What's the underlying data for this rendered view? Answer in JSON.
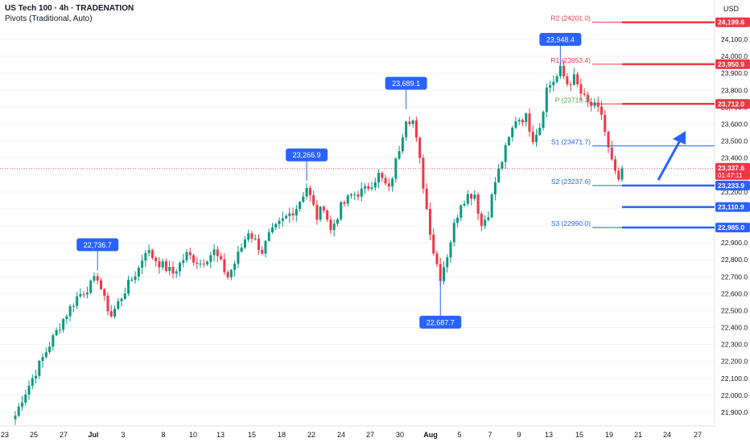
{
  "header": {
    "symbol_line": "US Tech 100 · 4h · TRADENATION",
    "indicator_line": "Pivots (Traditional, Auto)"
  },
  "colors": {
    "up": "#089981",
    "down": "#f23645",
    "blue": "#2962ff",
    "pivot_green": "#4caf50",
    "resistance_red": "#f23645",
    "axis_text": "#131722",
    "grid": "#f0f3fa"
  },
  "chart_data": {
    "type": "candlestick",
    "currency": "USD",
    "ylim": [
      21850,
      24280
    ],
    "y_ticks": [
      21900,
      22000,
      22100,
      22200,
      22300,
      22400,
      22500,
      22600,
      22700,
      22800,
      22900,
      23000,
      23100,
      23200,
      23300,
      23400,
      23500,
      23600,
      23700,
      23800,
      23900,
      24000,
      24100
    ],
    "y_tick_labels": [
      "21,900.0",
      "22,000.0",
      "22,100.0",
      "22,200.0",
      "22,300.0",
      "22,400.0",
      "22,500.0",
      "22,600.0",
      "22,700.0",
      "22,800.0",
      "22,900.0",
      "23,000.0",
      "23,100.0",
      "23,200.0",
      "23,300.0",
      "23,400.0",
      "23,500.0",
      "23,600.0",
      "23,700.0",
      "23,800.0",
      "23,900.0",
      "24,000.0",
      "24,100.0"
    ],
    "x_tick_labels": [
      "23",
      "25",
      "27",
      "Jul",
      "3",
      "8",
      "10",
      "13",
      "15",
      "18",
      "22",
      "24",
      "27",
      "30",
      "Aug",
      "5",
      "7",
      "9",
      "13",
      "15",
      "19",
      "21",
      "24",
      "27"
    ],
    "x_bold": [
      "Jul",
      "Aug"
    ],
    "anchors": [
      {
        "x": 0,
        "y": 21880
      },
      {
        "x": 2,
        "y": 21980
      },
      {
        "x": 5,
        "y": 22100
      },
      {
        "x": 10,
        "y": 22300
      },
      {
        "x": 14,
        "y": 22450
      },
      {
        "x": 18,
        "y": 22580
      },
      {
        "x": 22,
        "y": 22650
      },
      {
        "x": 24,
        "y": 22700
      },
      {
        "x": 26,
        "y": 22560
      },
      {
        "x": 28,
        "y": 22470
      },
      {
        "x": 32,
        "y": 22620
      },
      {
        "x": 36,
        "y": 22750
      },
      {
        "x": 38,
        "y": 22860
      },
      {
        "x": 42,
        "y": 22780
      },
      {
        "x": 46,
        "y": 22720
      },
      {
        "x": 50,
        "y": 22830
      },
      {
        "x": 54,
        "y": 22780
      },
      {
        "x": 58,
        "y": 22850
      },
      {
        "x": 62,
        "y": 22700
      },
      {
        "x": 64,
        "y": 22780
      },
      {
        "x": 68,
        "y": 22970
      },
      {
        "x": 72,
        "y": 22850
      },
      {
        "x": 74,
        "y": 22940
      },
      {
        "x": 78,
        "y": 23030
      },
      {
        "x": 82,
        "y": 23110
      },
      {
        "x": 85,
        "y": 23230
      },
      {
        "x": 88,
        "y": 23050
      },
      {
        "x": 90,
        "y": 23120
      },
      {
        "x": 92,
        "y": 22970
      },
      {
        "x": 95,
        "y": 23110
      },
      {
        "x": 98,
        "y": 23180
      },
      {
        "x": 102,
        "y": 23210
      },
      {
        "x": 106,
        "y": 23300
      },
      {
        "x": 109,
        "y": 23210
      },
      {
        "x": 112,
        "y": 23460
      },
      {
        "x": 114,
        "y": 23640
      },
      {
        "x": 116,
        "y": 23620
      },
      {
        "x": 118,
        "y": 23380
      },
      {
        "x": 120,
        "y": 23100
      },
      {
        "x": 122,
        "y": 22850
      },
      {
        "x": 124,
        "y": 22700
      },
      {
        "x": 126,
        "y": 22830
      },
      {
        "x": 128,
        "y": 23000
      },
      {
        "x": 130,
        "y": 23140
      },
      {
        "x": 132,
        "y": 23180
      },
      {
        "x": 134,
        "y": 23190
      },
      {
        "x": 136,
        "y": 23000
      },
      {
        "x": 138,
        "y": 23080
      },
      {
        "x": 140,
        "y": 23260
      },
      {
        "x": 143,
        "y": 23450
      },
      {
        "x": 146,
        "y": 23630
      },
      {
        "x": 149,
        "y": 23640
      },
      {
        "x": 151,
        "y": 23520
      },
      {
        "x": 153,
        "y": 23590
      },
      {
        "x": 155,
        "y": 23810
      },
      {
        "x": 158,
        "y": 23880
      },
      {
        "x": 159,
        "y": 23920
      },
      {
        "x": 161,
        "y": 23840
      },
      {
        "x": 163,
        "y": 23870
      },
      {
        "x": 165,
        "y": 23780
      },
      {
        "x": 167,
        "y": 23720
      },
      {
        "x": 169,
        "y": 23700
      },
      {
        "x": 171,
        "y": 23660
      },
      {
        "x": 173,
        "y": 23450
      },
      {
        "x": 175,
        "y": 23300
      },
      {
        "x": 176,
        "y": 23270
      },
      {
        "x": 177,
        "y": 23337
      }
    ],
    "pivots": [
      {
        "name": "R2",
        "label": "R2 (24201.0)",
        "value": 24201.0,
        "price_label": "24,199.6",
        "color": "#f23645"
      },
      {
        "name": "R1",
        "label": "R1 (23953.4)",
        "value": 23953.4,
        "price_label": "23,950.9",
        "color": "#f23645"
      },
      {
        "name": "P",
        "label": "P (23719.3)",
        "value": 23719.3,
        "price_label": "23,712.0",
        "color": "#f23645"
      },
      {
        "name": "S1",
        "label": "S1 (23471.7)",
        "value": 23471.7,
        "price_label": "",
        "color": "#2962ff"
      },
      {
        "name": "S2",
        "label": "S2 (23237.6)",
        "value": 23237.6,
        "price_label": "23,233.9",
        "color": "#2962ff"
      },
      {
        "name": "S3",
        "label": "S3 (22990.0)",
        "value": 22990.0,
        "price_label": "22,985.0",
        "color": "#2962ff"
      }
    ],
    "extra_levels": [
      {
        "value": 23110.9,
        "price_label": "23,110.9",
        "color": "#2962ff"
      }
    ],
    "callouts": [
      {
        "label": "22,736.7",
        "at_bar": 24,
        "value": 22736.7,
        "dir": "above"
      },
      {
        "label": "23,266.9",
        "at_bar": 85,
        "value": 23266.9,
        "dir": "above"
      },
      {
        "label": "23,689.1",
        "at_bar": 114,
        "value": 23689.1,
        "dir": "above"
      },
      {
        "label": "22,687.7",
        "at_bar": 124,
        "value": 22687.7,
        "dir": "below"
      },
      {
        "label": "23,948.4",
        "at_bar": 159,
        "value": 23948.4,
        "dir": "above"
      }
    ],
    "current_price": {
      "value": 23337.6,
      "label": "23,337.6",
      "countdown": "01:47:11"
    }
  }
}
